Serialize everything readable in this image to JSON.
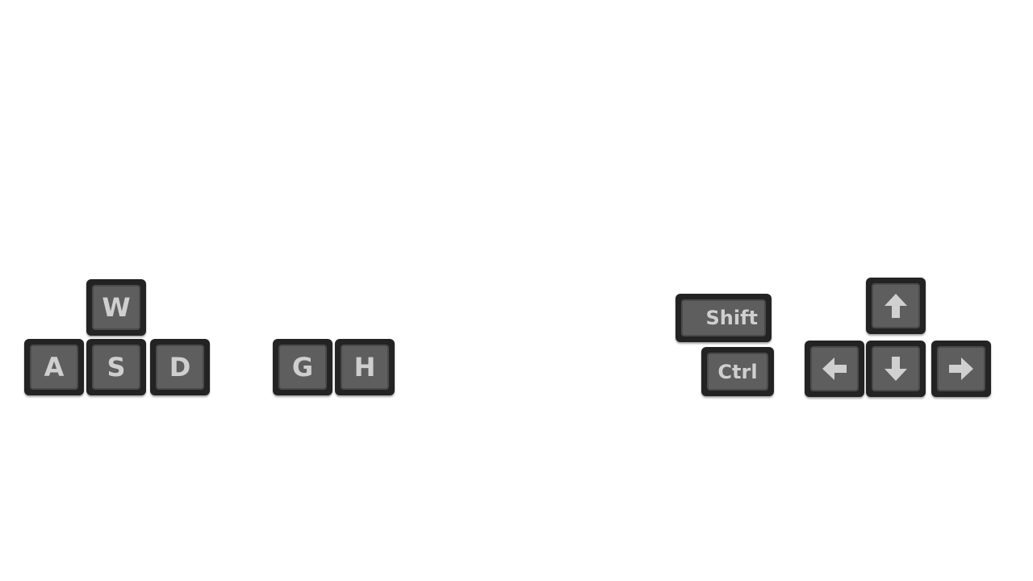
{
  "keys": {
    "w": "W",
    "a": "A",
    "s": "S",
    "d": "D",
    "g": "G",
    "h": "H",
    "shift": "Shift",
    "ctrl": "Ctrl"
  },
  "icons": {
    "up": "arrow-up-icon",
    "left": "arrow-left-icon",
    "down": "arrow-down-icon",
    "right": "arrow-right-icon"
  },
  "colors": {
    "key_outer": "#232323",
    "key_face": "#5e5e5e",
    "key_label": "#cfcfcf"
  }
}
